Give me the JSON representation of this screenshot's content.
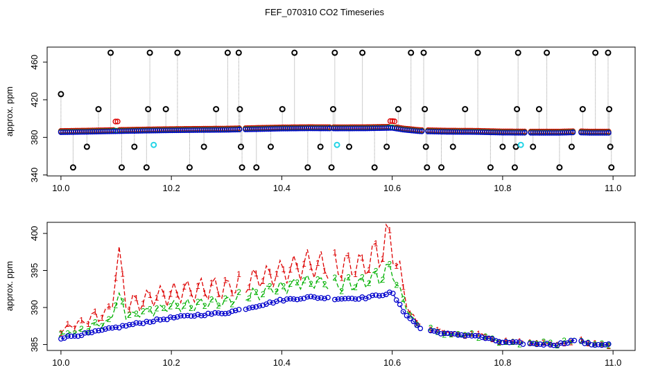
{
  "figure": {
    "title": "FEF_070310  CO2 Timeseries"
  },
  "colors": {
    "red": "#dd0000",
    "green": "#00b000",
    "blue": "#0000cc",
    "black": "#000000",
    "cyan": "#22d4e6",
    "gray": "#999999"
  },
  "chart_data": [
    {
      "type": "scatter",
      "title": "",
      "xlabel": "",
      "ylabel": "approx. ppm",
      "xlim": [
        9.975,
        11.04
      ],
      "ylim": [
        339,
        476
      ],
      "xticks": [
        "10.0",
        "10.2",
        "10.4",
        "10.6",
        "10.8",
        "11.0"
      ],
      "xtick_values": [
        10.0,
        10.2,
        10.4,
        10.6,
        10.8,
        11.0
      ],
      "yticks": [
        "340",
        "380",
        "420",
        "460"
      ],
      "ytick_values": [
        340,
        380,
        420,
        460
      ],
      "grid": false,
      "legend": "none",
      "baseline_series": [
        {
          "name": "",
          "color": "red",
          "base_offset": 1.3,
          "marker": "circle"
        },
        {
          "name": "",
          "color": "green",
          "base_offset": 0.5,
          "marker": "circle"
        },
        {
          "name": "",
          "color": "blue",
          "base_offset": 0,
          "marker": "circle"
        }
      ],
      "outliers_black": [
        {
          "x": 10.0,
          "y": 426
        },
        {
          "x": 10.022,
          "y": 348
        },
        {
          "x": 10.047,
          "y": 370
        },
        {
          "x": 10.068,
          "y": 410
        },
        {
          "x": 10.09,
          "y": 470
        },
        {
          "x": 10.11,
          "y": 348
        },
        {
          "x": 10.133,
          "y": 370
        },
        {
          "x": 10.155,
          "y": 348
        },
        {
          "x": 10.158,
          "y": 410
        },
        {
          "x": 10.161,
          "y": 470
        },
        {
          "x": 10.19,
          "y": 410
        },
        {
          "x": 10.211,
          "y": 470
        },
        {
          "x": 10.233,
          "y": 348
        },
        {
          "x": 10.259,
          "y": 370
        },
        {
          "x": 10.281,
          "y": 410
        },
        {
          "x": 10.302,
          "y": 470
        },
        {
          "x": 10.322,
          "y": 470
        },
        {
          "x": 10.324,
          "y": 410
        },
        {
          "x": 10.326,
          "y": 370
        },
        {
          "x": 10.328,
          "y": 348
        },
        {
          "x": 10.354,
          "y": 348
        },
        {
          "x": 10.38,
          "y": 370
        },
        {
          "x": 10.401,
          "y": 410
        },
        {
          "x": 10.423,
          "y": 470
        },
        {
          "x": 10.447,
          "y": 348
        },
        {
          "x": 10.47,
          "y": 370
        },
        {
          "x": 10.49,
          "y": 348
        },
        {
          "x": 10.493,
          "y": 410
        },
        {
          "x": 10.496,
          "y": 470
        },
        {
          "x": 10.522,
          "y": 370
        },
        {
          "x": 10.546,
          "y": 470
        },
        {
          "x": 10.568,
          "y": 348
        },
        {
          "x": 10.59,
          "y": 370
        },
        {
          "x": 10.611,
          "y": 410
        },
        {
          "x": 10.634,
          "y": 470
        },
        {
          "x": 10.657,
          "y": 470
        },
        {
          "x": 10.659,
          "y": 410
        },
        {
          "x": 10.661,
          "y": 370
        },
        {
          "x": 10.663,
          "y": 348
        },
        {
          "x": 10.689,
          "y": 348
        },
        {
          "x": 10.71,
          "y": 370
        },
        {
          "x": 10.732,
          "y": 410
        },
        {
          "x": 10.755,
          "y": 470
        },
        {
          "x": 10.778,
          "y": 348
        },
        {
          "x": 10.8,
          "y": 370
        },
        {
          "x": 10.822,
          "y": 348
        },
        {
          "x": 10.824,
          "y": 370
        },
        {
          "x": 10.826,
          "y": 410
        },
        {
          "x": 10.828,
          "y": 470
        },
        {
          "x": 10.855,
          "y": 370
        },
        {
          "x": 10.88,
          "y": 470
        },
        {
          "x": 10.866,
          "y": 410
        },
        {
          "x": 10.903,
          "y": 348
        },
        {
          "x": 10.925,
          "y": 370
        },
        {
          "x": 10.945,
          "y": 410
        },
        {
          "x": 10.968,
          "y": 470
        },
        {
          "x": 10.991,
          "y": 470
        },
        {
          "x": 10.993,
          "y": 410
        },
        {
          "x": 10.995,
          "y": 370
        },
        {
          "x": 10.997,
          "y": 348
        }
      ],
      "outliers_cyan": [
        {
          "x": 10.168,
          "y": 372
        },
        {
          "x": 10.5,
          "y": 372
        },
        {
          "x": 10.833,
          "y": 372
        }
      ]
    },
    {
      "type": "line",
      "title": "",
      "xlabel": "",
      "ylabel": "approx. ppm",
      "xlim": [
        9.975,
        11.04
      ],
      "ylim": [
        384.2,
        401.5
      ],
      "xticks": [
        "10.0",
        "10.2",
        "10.4",
        "10.6",
        "10.8",
        "11.0"
      ],
      "xtick_values": [
        10.0,
        10.2,
        10.4,
        10.6,
        10.8,
        11.0
      ],
      "yticks": [
        "385",
        "390",
        "395",
        "400"
      ],
      "ytick_values": [
        385,
        390,
        395,
        400
      ],
      "grid": false,
      "legend": "none",
      "series": [
        {
          "name": "",
          "label": "1",
          "color": "red",
          "offset_scale": 1.0
        },
        {
          "name": "",
          "label": "2",
          "color": "green",
          "offset_scale": 0.45
        },
        {
          "name": "",
          "label": "3",
          "color": "blue",
          "offset_scale": 0.0
        }
      ],
      "base_curve": [
        {
          "x": 10.0,
          "y": 385.9
        },
        {
          "x": 10.05,
          "y": 386.5
        },
        {
          "x": 10.1,
          "y": 387.3
        },
        {
          "x": 10.15,
          "y": 388.0
        },
        {
          "x": 10.2,
          "y": 388.6
        },
        {
          "x": 10.25,
          "y": 389.0
        },
        {
          "x": 10.3,
          "y": 389.3
        },
        {
          "x": 10.33,
          "y": 389.8
        },
        {
          "x": 10.4,
          "y": 391.0
        },
        {
          "x": 10.45,
          "y": 391.4
        },
        {
          "x": 10.5,
          "y": 391.2
        },
        {
          "x": 10.55,
          "y": 391.3
        },
        {
          "x": 10.6,
          "y": 392.0
        },
        {
          "x": 10.62,
          "y": 389.5
        },
        {
          "x": 10.65,
          "y": 387.2
        },
        {
          "x": 10.7,
          "y": 386.4
        },
        {
          "x": 10.75,
          "y": 386.2
        },
        {
          "x": 10.8,
          "y": 385.3
        },
        {
          "x": 10.85,
          "y": 385.1
        },
        {
          "x": 10.9,
          "y": 385.0
        },
        {
          "x": 10.93,
          "y": 385.6
        },
        {
          "x": 10.96,
          "y": 385.0
        },
        {
          "x": 11.0,
          "y": 385.0
        }
      ],
      "red_excess": [
        {
          "x": 10.0,
          "y": 1.2
        },
        {
          "x": 10.09,
          "y": 3.0
        },
        {
          "x": 10.1,
          "y": 12.0
        },
        {
          "x": 10.12,
          "y": 3.5
        },
        {
          "x": 10.2,
          "y": 4.2
        },
        {
          "x": 10.3,
          "y": 4.2
        },
        {
          "x": 10.4,
          "y": 5.0
        },
        {
          "x": 10.45,
          "y": 5.5
        },
        {
          "x": 10.55,
          "y": 5.5
        },
        {
          "x": 10.6,
          "y": 9.0
        },
        {
          "x": 10.63,
          "y": 0.8
        },
        {
          "x": 10.7,
          "y": 0.2
        },
        {
          "x": 11.0,
          "y": 0.0
        }
      ]
    }
  ]
}
